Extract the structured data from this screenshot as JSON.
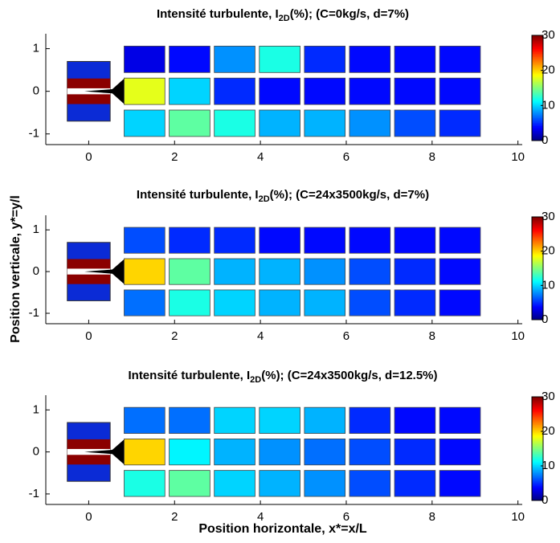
{
  "x_label": "Position horizontale, x*=x/L",
  "y_label": "Position verticale, y*=y/l",
  "chart_data": [
    {
      "type": "heatmap",
      "title_main": "Intensité turbulente, I",
      "title_sub": "2D",
      "title_rest": "(%); (C=0kg/s, d=7%)",
      "x": [
        1.3,
        2.35,
        3.4,
        4.45,
        5.5,
        6.55,
        7.6,
        8.65
      ],
      "y": [
        0.75,
        0,
        -0.75
      ],
      "values": [
        [
          3,
          4,
          8,
          12,
          5,
          4,
          4,
          4
        ],
        [
          18,
          10,
          5,
          4,
          4,
          4,
          4,
          4
        ],
        [
          10,
          14,
          12,
          9,
          9,
          8,
          6,
          5
        ]
      ],
      "xlim": [
        -1,
        10.1
      ],
      "ylim": [
        -1.25,
        1.35
      ],
      "xticks": [
        0,
        2,
        4,
        6,
        8,
        10
      ],
      "yticks": [
        -1,
        0,
        1
      ],
      "clim": [
        0,
        30
      ],
      "cticks": [
        0,
        10,
        20,
        30
      ],
      "colormap": "jet"
    },
    {
      "type": "heatmap",
      "title_main": "Intensité turbulente, I",
      "title_sub": "2D",
      "title_rest": "(%); (C=24x3500kg/s, d=7%)",
      "x": [
        1.3,
        2.35,
        3.4,
        4.45,
        5.5,
        6.55,
        7.6,
        8.65
      ],
      "y": [
        0.75,
        0,
        -0.75
      ],
      "values": [
        [
          6,
          5,
          5,
          4,
          4,
          4,
          4,
          4
        ],
        [
          20,
          14,
          9,
          9,
          8,
          6,
          5,
          4
        ],
        [
          7,
          12,
          10,
          9,
          9,
          6,
          5,
          4
        ]
      ],
      "xlim": [
        -1,
        10.1
      ],
      "ylim": [
        -1.25,
        1.35
      ],
      "xticks": [
        0,
        2,
        4,
        6,
        8,
        10
      ],
      "yticks": [
        -1,
        0,
        1
      ],
      "clim": [
        0,
        30
      ],
      "cticks": [
        0,
        10,
        20,
        30
      ],
      "colormap": "jet"
    },
    {
      "type": "heatmap",
      "title_main": "Intensité turbulente, I",
      "title_sub": "2D",
      "title_rest": "(%); (C=24x3500kg/s, d=12.5%)",
      "x": [
        1.3,
        2.35,
        3.4,
        4.45,
        5.5,
        6.55,
        7.6,
        8.65
      ],
      "y": [
        0.75,
        0,
        -0.75
      ],
      "values": [
        [
          7,
          7,
          10,
          10,
          9,
          5,
          4,
          4
        ],
        [
          20,
          11,
          9,
          8,
          7,
          6,
          5,
          4
        ],
        [
          12,
          14,
          10,
          9,
          8,
          6,
          5,
          4
        ]
      ],
      "xlim": [
        -1,
        10.1
      ],
      "ylim": [
        -1.25,
        1.35
      ],
      "xticks": [
        0,
        2,
        4,
        6,
        8,
        10
      ],
      "yticks": [
        -1,
        0,
        1
      ],
      "clim": [
        0,
        30
      ],
      "cticks": [
        0,
        10,
        20,
        30
      ],
      "colormap": "jet"
    }
  ]
}
